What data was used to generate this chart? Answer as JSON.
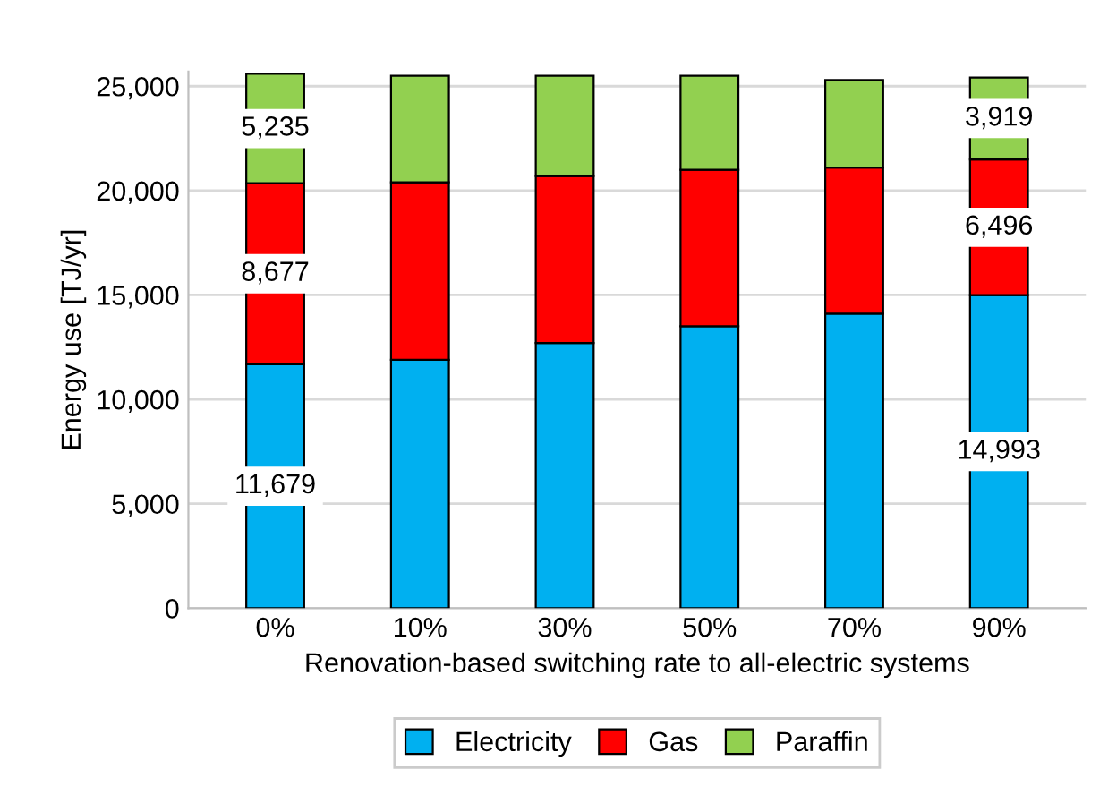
{
  "chart_data": {
    "type": "bar",
    "stacked": true,
    "xlabel": "Renovation-based switching rate to all-electric systems",
    "ylabel": "Energy use [TJ/yr]",
    "categories": [
      "0%",
      "10%",
      "30%",
      "50%",
      "70%",
      "90%"
    ],
    "series": [
      {
        "name": "Electricity",
        "color": "#00b0f0",
        "values": [
          11679,
          11900,
          12700,
          13500,
          14100,
          14993
        ],
        "value_labels": [
          "11,679",
          null,
          null,
          null,
          null,
          "14,993"
        ]
      },
      {
        "name": "Gas",
        "color": "#ff0000",
        "values": [
          8677,
          8500,
          8000,
          7500,
          7000,
          6496
        ],
        "value_labels": [
          "8,677",
          null,
          null,
          null,
          null,
          "6,496"
        ]
      },
      {
        "name": "Paraffin",
        "color": "#92d050",
        "values": [
          5235,
          5100,
          4800,
          4500,
          4200,
          3919
        ],
        "value_labels": [
          "5,235",
          null,
          null,
          null,
          null,
          "3,919"
        ]
      }
    ],
    "ylim": [
      0,
      25700
    ],
    "yticks": [
      {
        "value": 0,
        "label": "0"
      },
      {
        "value": 5000,
        "label": "5,000"
      },
      {
        "value": 10000,
        "label": "10,000"
      },
      {
        "value": 15000,
        "label": "15,000"
      },
      {
        "value": 20000,
        "label": "20,000"
      },
      {
        "value": 25000,
        "label": "25,000"
      }
    ],
    "grid": "y",
    "legend": "bottom"
  }
}
